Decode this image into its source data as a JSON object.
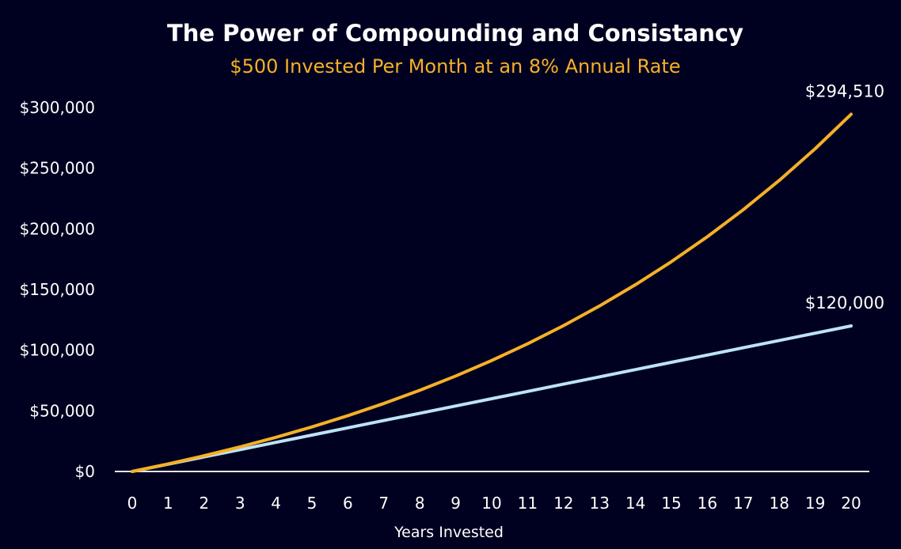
{
  "chart_data": {
    "type": "line",
    "title": "The Power of Compounding and Consistancy",
    "subtitle": "$500 Invested Per Month at an 8% Annual Rate",
    "xlabel": "Years Invested",
    "ylabel": "",
    "x": [
      0,
      1,
      2,
      3,
      4,
      5,
      6,
      7,
      8,
      9,
      10,
      11,
      12,
      13,
      14,
      15,
      16,
      17,
      18,
      19,
      20
    ],
    "xlim": [
      0,
      20
    ],
    "ylim": [
      0,
      300000
    ],
    "y_ticks": [
      "$0",
      "$50,000",
      "$100,000",
      "$150,000",
      "$200,000",
      "$250,000",
      "$300,000"
    ],
    "x_ticks": [
      "0",
      "1",
      "2",
      "3",
      "4",
      "5",
      "6",
      "7",
      "8",
      "9",
      "10",
      "11",
      "12",
      "13",
      "14",
      "15",
      "16",
      "17",
      "18",
      "19",
      "20"
    ],
    "grid": false,
    "series": [
      {
        "color": "#F5B027",
        "end_label": "$294,510",
        "values": [
          0,
          6225,
          12967,
          20268,
          28175,
          36738,
          46010,
          56053,
          66929,
          78707,
          91473,
          105286,
          120243,
          136441,
          153983,
          172985,
          193549,
          215830,
          239956,
          266085,
          294510
        ]
      },
      {
        "color": "#BDE3F5",
        "end_label": "$120,000",
        "values": [
          0,
          6000,
          12000,
          18000,
          24000,
          30000,
          36000,
          42000,
          48000,
          54000,
          60000,
          66000,
          72000,
          78000,
          84000,
          90000,
          96000,
          102000,
          108000,
          114000,
          120000
        ]
      }
    ]
  }
}
